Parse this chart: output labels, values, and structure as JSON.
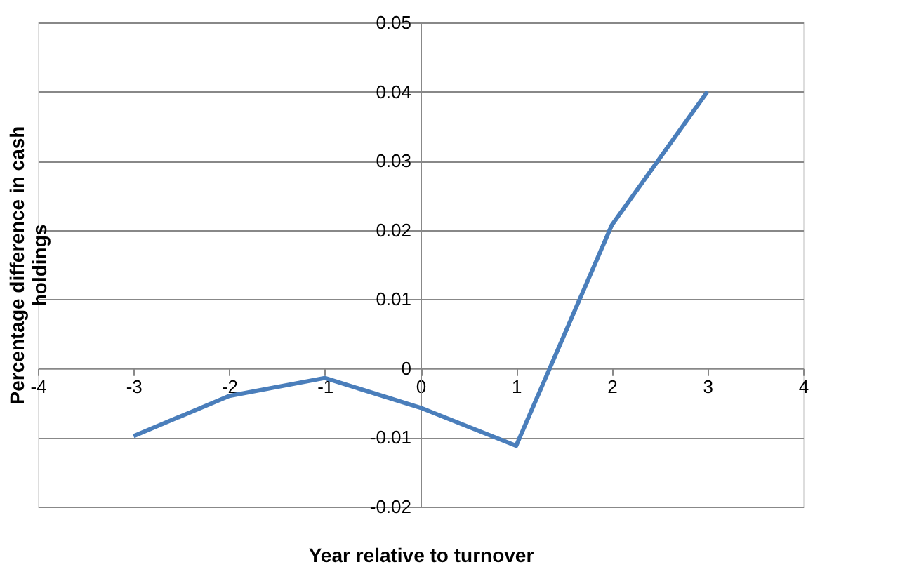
{
  "chart_data": {
    "type": "line",
    "xlabel": "Year relative to turnover",
    "ylabel": "Percentage difference in cash holdings",
    "x": [
      -3,
      -2,
      -1,
      0,
      1,
      2,
      3
    ],
    "series": [
      {
        "color": "#4a7ebb",
        "values": [
          -0.0098,
          -0.004,
          -0.0014,
          -0.0057,
          -0.0112,
          0.0207,
          0.04
        ]
      }
    ],
    "xlim": [
      -4,
      4
    ],
    "xticks": [
      -4,
      -3,
      -2,
      -1,
      0,
      1,
      2,
      3,
      4
    ],
    "ylim": [
      -0.02,
      0.05
    ],
    "yticks": [
      -0.02,
      -0.01,
      0,
      0.01,
      0.02,
      0.03,
      0.04,
      0.05
    ],
    "grid": "y",
    "marker": "none",
    "line_style": "solid"
  }
}
